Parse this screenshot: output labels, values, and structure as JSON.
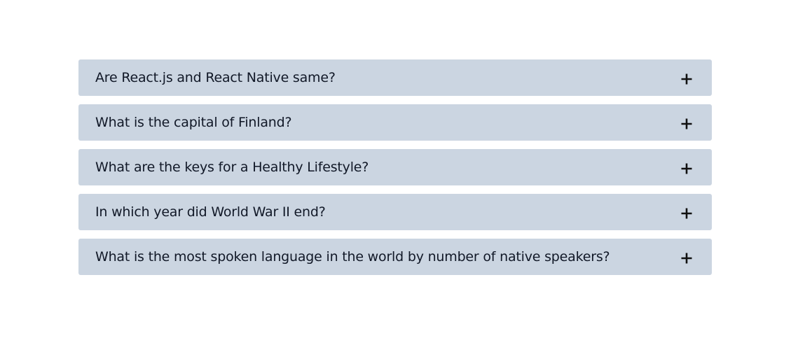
{
  "faq": {
    "items": [
      {
        "question": "Are React.js and React Native same?",
        "icon": "plus-icon"
      },
      {
        "question": "What is the capital of Finland?",
        "icon": "plus-icon"
      },
      {
        "question": "What are the keys for a Healthy Lifestyle?",
        "icon": "plus-icon"
      },
      {
        "question": "In which year did World War II end?",
        "icon": "plus-icon"
      },
      {
        "question": "What is the most spoken language in the world by number of native speakers?",
        "icon": "plus-icon"
      }
    ]
  },
  "colors": {
    "item_background": "#cbd5e1",
    "text": "#111827",
    "page_background": "#ffffff"
  }
}
